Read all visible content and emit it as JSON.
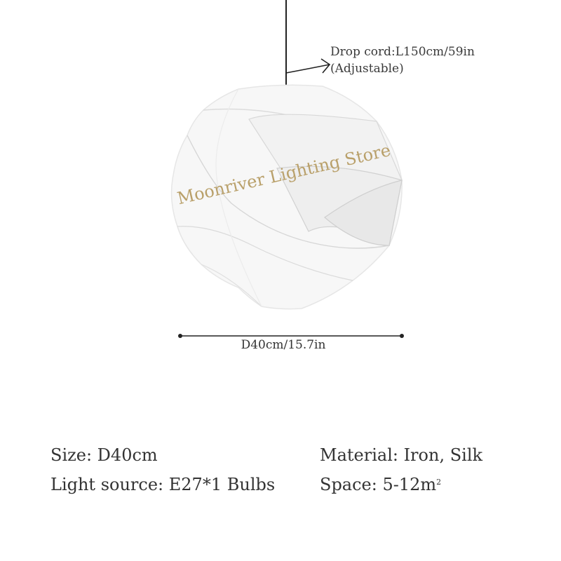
{
  "callouts": {
    "drop_cord": "Drop cord:L150cm/59in",
    "adjustable": "(Adjustable)",
    "diameter": "D40cm/15.7in"
  },
  "watermark": "Moonriver Lighting Store",
  "specs": {
    "size": "Size: D40cm",
    "light_source": "Light source: E27*1 Bulbs",
    "material": "Material: Iron, Silk",
    "space": "Space: 5-12m",
    "space_unit_exp": "2"
  },
  "colors": {
    "watermark": "#b9a06a",
    "text": "#333333"
  }
}
